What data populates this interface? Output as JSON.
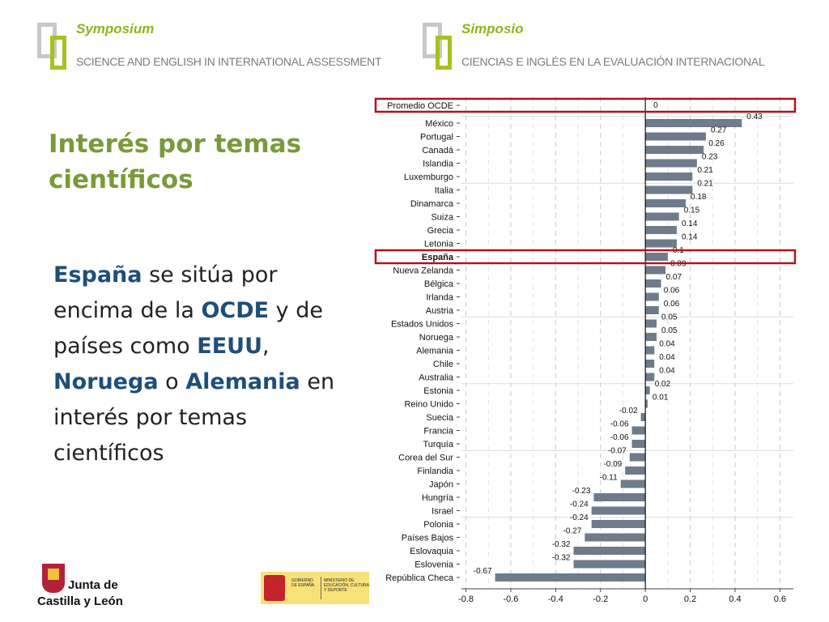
{
  "header": {
    "left_title": "Symposium",
    "left_subtitle": "SCIENCE AND ENGLISH IN INTERNATIONAL ASSESSMENT",
    "right_title": "Simposio",
    "right_subtitle": "CIENCIAS E INGLÉS EN LA  EVALUACIÓN INTERNACIONAL"
  },
  "heading": "Interés por temas científicos",
  "body": {
    "p1": "España",
    "p2": " se sitúa por encima de la ",
    "p3": "OCDE",
    "p4": " y de países como ",
    "p5": "EEUU",
    "p6": ", ",
    "p7": "Noruega",
    "p8": " o ",
    "p9": "Alemania",
    "p10": " en interés por temas científicos"
  },
  "footer": {
    "jcyl_line1": "Junta de",
    "jcyl_line2": "Castilla y León",
    "gob_line1": "GOBIERNO DE ESPAÑA",
    "gob_line2": "MINISTERIO DE EDUCACIÓN, CULTURA Y DEPORTE"
  },
  "colors": {
    "bar": "#6e7b8b",
    "highlight_box": "#b0141c",
    "heading": "#7a9a3a",
    "emphasis": "#1f4e79"
  },
  "chart_data": {
    "type": "bar",
    "orientation": "horizontal",
    "categories": [
      "Promedio OCDE",
      "México",
      "Portugal",
      "Canadá",
      "Islandia",
      "Luxemburgo",
      "Italia",
      "Dinamarca",
      "Suiza",
      "Grecia",
      "Letonia",
      "España",
      "Nueva Zelanda",
      "Bélgica",
      "Irlanda",
      "Austria",
      "Estados Unidos",
      "Noruega",
      "Alemania",
      "Chile",
      "Australia",
      "Estonia",
      "Reino Unido",
      "Suecia",
      "Francia",
      "Turquía",
      "Corea del Sur",
      "Finlandia",
      "Japón",
      "Hungría",
      "Israel",
      "Polonia",
      "Países Bajos",
      "Eslovaquia",
      "Eslovenia",
      "República Checa"
    ],
    "values": [
      0,
      0.43,
      0.27,
      0.26,
      0.23,
      0.21,
      0.21,
      0.18,
      0.15,
      0.14,
      0.14,
      0.1,
      0.09,
      0.07,
      0.06,
      0.06,
      0.05,
      0.05,
      0.04,
      0.04,
      0.04,
      0.02,
      0.01,
      -0.02,
      -0.06,
      -0.06,
      -0.07,
      -0.09,
      -0.11,
      -0.23,
      -0.24,
      -0.24,
      -0.27,
      -0.32,
      -0.32,
      -0.67
    ],
    "labels": [
      "0",
      "0.43",
      "0.27",
      "0.26",
      "0.23",
      "0.21",
      "0.21",
      "0.18",
      "0.15",
      "0.14",
      "0.14",
      "0.1",
      "0.09",
      "0.07",
      "0.06",
      "0.06",
      "0.05",
      "0.05",
      "0.04",
      "0.04",
      "0.04",
      "0.02",
      "0.01",
      "-0.02",
      "-0.06",
      "-0.06",
      "-0.07",
      "-0.09",
      "-0.11",
      "-0.23",
      "-0.24",
      "-0.24",
      "-0.27",
      "-0.32",
      "-0.32",
      "-0.67"
    ],
    "highlighted": [
      "Promedio OCDE",
      "España"
    ],
    "bold_category": "España",
    "xticks": [
      "-0.8",
      "-0.6",
      "-0.4",
      "-0.2",
      "0",
      "0.2",
      "0.4",
      "0.6"
    ],
    "xlim": [
      -0.82,
      0.66
    ],
    "grid": "vertical dashed"
  }
}
